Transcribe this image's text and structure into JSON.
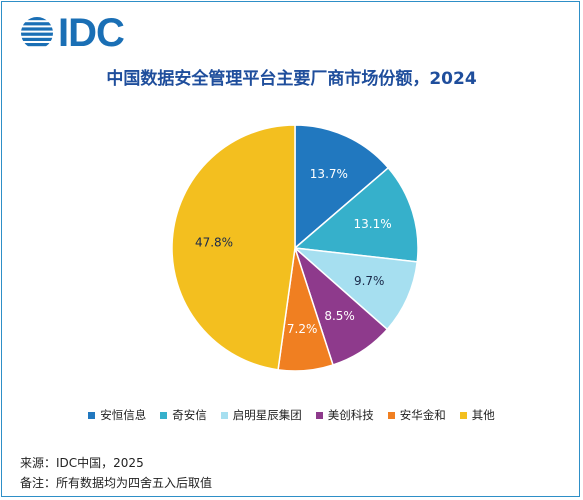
{
  "logo": {
    "text": "IDC"
  },
  "chart_data": {
    "type": "pie",
    "title": "中国数据安全管理平台主要厂商市场份额，2024",
    "slices": [
      {
        "label": "安恒信息",
        "value": 13.7,
        "value_label": "13.7%",
        "color": "#2178bf"
      },
      {
        "label": "奇安信",
        "value": 13.1,
        "value_label": "13.1%",
        "color": "#36b0cb"
      },
      {
        "label": "启明星辰集团",
        "value": 9.7,
        "value_label": "9.7%",
        "color": "#a6dff0"
      },
      {
        "label": "美创科技",
        "value": 8.5,
        "value_label": "8.5%",
        "color": "#8e3a8c"
      },
      {
        "label": "安华金和",
        "value": 7.2,
        "value_label": "7.2%",
        "color": "#f07f21"
      },
      {
        "label": "其他",
        "value": 47.8,
        "value_label": "47.8%",
        "color": "#f3bf1f"
      }
    ],
    "start": "12 o'clock",
    "direction": "clockwise",
    "legend_position": "bottom"
  },
  "footer": {
    "source": "来源：IDC中国，2025",
    "note": "备注：所有数据均为四舍五入后取值"
  }
}
